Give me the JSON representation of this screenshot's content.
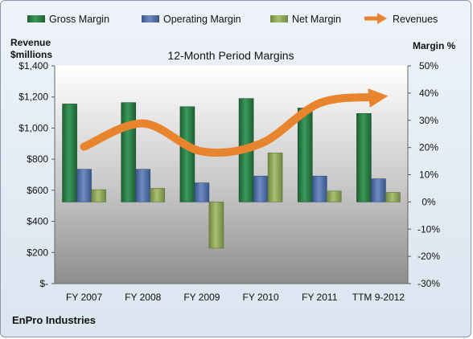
{
  "chart_data": {
    "type": "bar",
    "title": "12-Month Period Margins",
    "company": "EnPro Industries",
    "left_axis_label_line1": "Revenue",
    "left_axis_label_line2": "$millions",
    "right_axis_label": "Margin %",
    "categories": [
      "FY 2007",
      "FY 2008",
      "FY 2009",
      "FY 2010",
      "FY 2011",
      "TTM 9-2012"
    ],
    "left_ticks": [
      "$1,400",
      "$1,200",
      "$1,000",
      "$800",
      "$600",
      "$400",
      "$200",
      "$-"
    ],
    "right_ticks": [
      "50%",
      "40%",
      "30%",
      "20%",
      "10%",
      "0%",
      "-10%",
      "-20%",
      "-30%"
    ],
    "ylim_left": [
      0,
      1400
    ],
    "ylim_right": [
      -30,
      50
    ],
    "series": [
      {
        "name": "Gross Margin",
        "axis": "right",
        "color": "#2a7a45",
        "values": [
          36,
          36.5,
          35,
          38,
          34.5,
          32.5
        ]
      },
      {
        "name": "Operating Margin",
        "axis": "right",
        "color": "#4f6ea8",
        "values": [
          12,
          12,
          7,
          9.5,
          9.5,
          8.5
        ]
      },
      {
        "name": "Net Margin",
        "axis": "right",
        "color": "#8fa85a",
        "values": [
          4.5,
          5,
          -17,
          18,
          4,
          3.5
        ]
      },
      {
        "name": "Revenues",
        "axis": "left",
        "type": "line",
        "color": "#e9842e",
        "values": [
          880,
          1030,
          850,
          900,
          1160,
          1200
        ]
      }
    ],
    "legend_position": "top",
    "grid": false
  }
}
